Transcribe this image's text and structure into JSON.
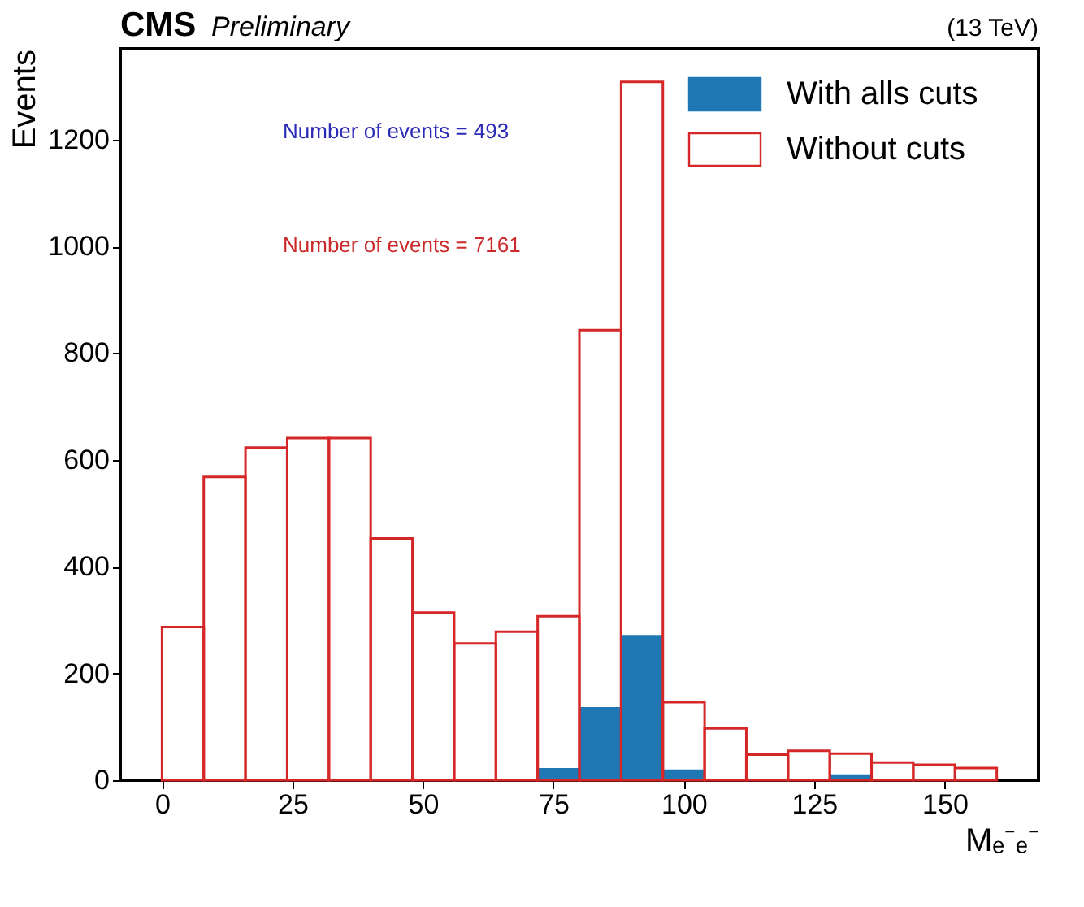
{
  "chart_data": {
    "type": "histogram",
    "title": "CMS",
    "subtitle": "Preliminary",
    "xlabel": "Mₑ⁻ₑ⁻",
    "ylabel": "Events",
    "annotations": [
      "(13 TeV)",
      "Number of events = 493",
      "Number of events = 7161"
    ],
    "bins": [
      0,
      8,
      16,
      24,
      32,
      40,
      48,
      56,
      64,
      72,
      80,
      88,
      96,
      104,
      112,
      120,
      128,
      136,
      144,
      152,
      160
    ],
    "series": [
      {
        "name": "With alls cuts",
        "color": "#1f77b4",
        "values": [
          0,
          0,
          0,
          0,
          0,
          0,
          0,
          0,
          null,
          23,
          137,
          272,
          20,
          null,
          0,
          0,
          11,
          0,
          0,
          0
        ]
      },
      {
        "name": "Without cuts",
        "color": "#d62728",
        "values": [
          287,
          568,
          623,
          641,
          641,
          453,
          314,
          256,
          278,
          307,
          843,
          1308,
          146,
          97,
          48,
          55,
          50,
          33,
          29,
          23
        ]
      }
    ],
    "xlim": [
      -8,
      168
    ],
    "ylim": [
      0,
      1370
    ],
    "xticks": [
      0,
      25,
      50,
      75,
      100,
      125,
      150
    ],
    "yticks": [
      0,
      200,
      400,
      600,
      800,
      1000,
      1200
    ],
    "grid": false,
    "legend": "top right"
  }
}
